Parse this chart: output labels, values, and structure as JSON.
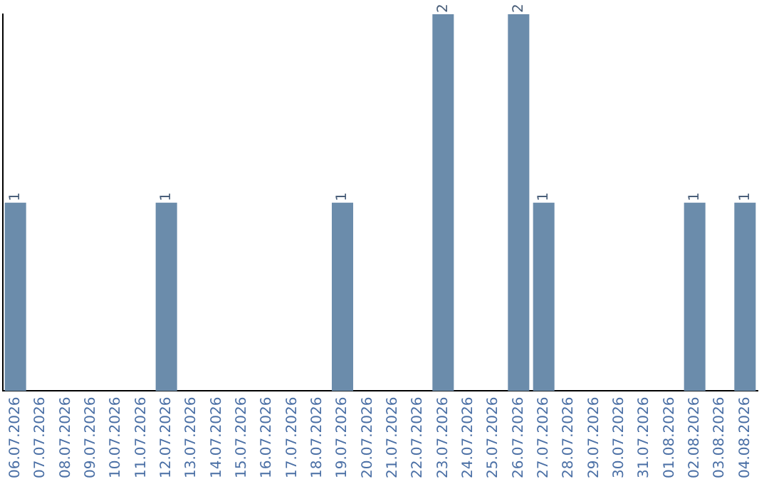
{
  "chart_data": {
    "type": "bar",
    "categories": [
      "06.07.2026",
      "07.07.2026",
      "08.07.2026",
      "09.07.2026",
      "10.07.2026",
      "11.07.2026",
      "12.07.2026",
      "13.07.2026",
      "14.07.2026",
      "15.07.2026",
      "16.07.2026",
      "17.07.2026",
      "18.07.2026",
      "19.07.2026",
      "20.07.2026",
      "21.07.2026",
      "22.07.2026",
      "23.07.2026",
      "24.07.2026",
      "25.07.2026",
      "26.07.2026",
      "27.07.2026",
      "28.07.2026",
      "29.07.2026",
      "30.07.2026",
      "31.07.2026",
      "01.08.2026",
      "02.08.2026",
      "03.08.2026",
      "04.08.2026"
    ],
    "values": [
      1,
      0,
      0,
      0,
      0,
      0,
      1,
      0,
      0,
      0,
      0,
      0,
      0,
      1,
      0,
      0,
      0,
      2,
      0,
      0,
      2,
      1,
      0,
      0,
      0,
      0,
      0,
      1,
      0,
      1
    ],
    "value_labels": [
      "1",
      null,
      null,
      null,
      null,
      null,
      "1",
      null,
      null,
      null,
      null,
      null,
      null,
      "1",
      null,
      null,
      null,
      "2",
      null,
      null,
      "2",
      "1",
      null,
      null,
      null,
      null,
      null,
      "1",
      null,
      "1"
    ],
    "color": "#6b8cab",
    "tick_labels": "x"
  }
}
